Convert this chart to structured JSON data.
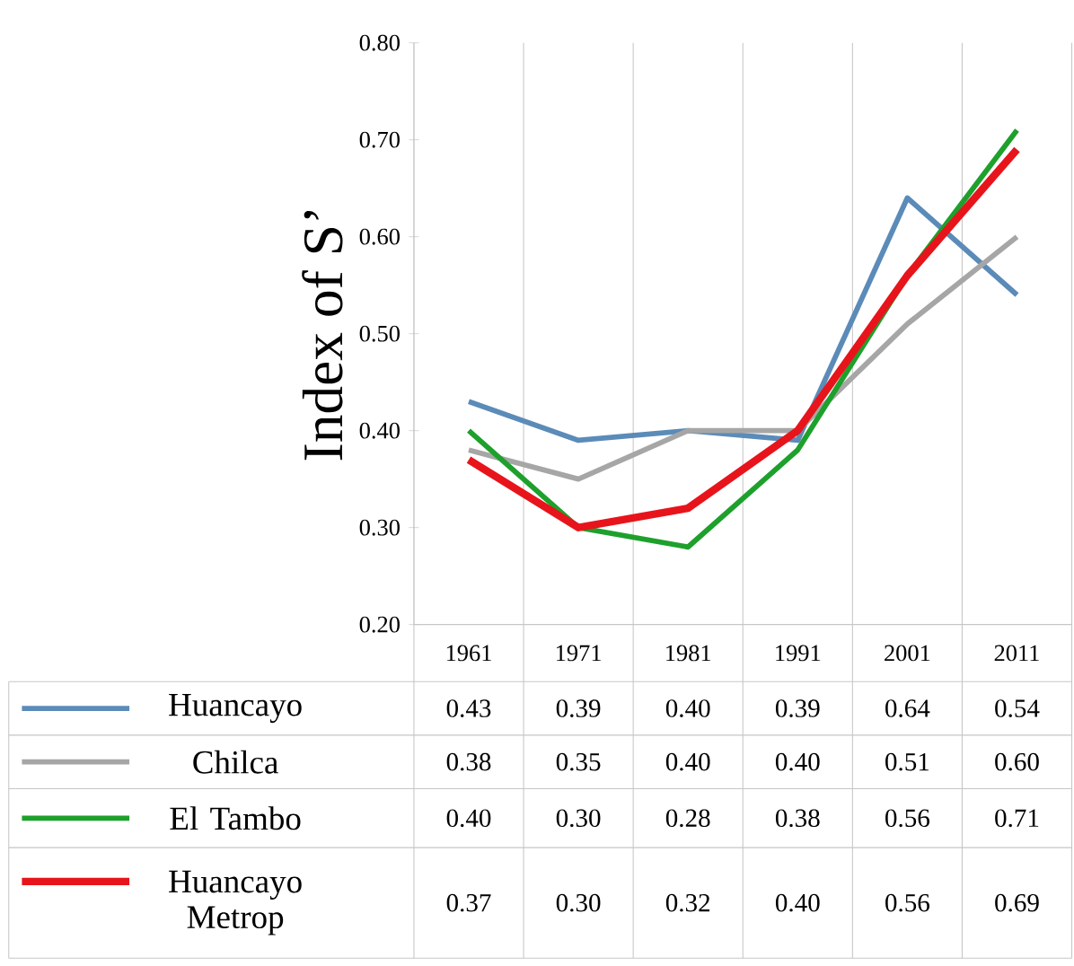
{
  "chart_data": {
    "type": "line",
    "ylabel": "Index of S’",
    "categories": [
      "1961",
      "1971",
      "1981",
      "1991",
      "2001",
      "2011"
    ],
    "ylim": [
      0.2,
      0.8
    ],
    "yticks": [
      {
        "value": 0.2,
        "label": "0.20"
      },
      {
        "value": 0.3,
        "label": "0.30"
      },
      {
        "value": 0.4,
        "label": "0.40"
      },
      {
        "value": 0.5,
        "label": "0.50"
      },
      {
        "value": 0.6,
        "label": "0.60"
      },
      {
        "value": 0.7,
        "label": "0.70"
      },
      {
        "value": 0.8,
        "label": "0.80"
      }
    ],
    "series": [
      {
        "name": "Huancayo",
        "color": "#5b8bb8",
        "values": [
          0.43,
          0.39,
          0.4,
          0.39,
          0.64,
          0.54
        ],
        "value_labels": [
          "0.43",
          "0.39",
          "0.40",
          "0.39",
          "0.64",
          "0.54"
        ]
      },
      {
        "name": "Chilca",
        "color": "#a6a6a6",
        "values": [
          0.38,
          0.35,
          0.4,
          0.4,
          0.51,
          0.6
        ],
        "value_labels": [
          "0.38",
          "0.35",
          "0.40",
          "0.40",
          "0.51",
          "0.60"
        ]
      },
      {
        "name": "El Tambo",
        "color": "#1ea02c",
        "values": [
          0.4,
          0.3,
          0.28,
          0.38,
          0.56,
          0.71
        ],
        "value_labels": [
          "0.40",
          "0.30",
          "0.28",
          "0.38",
          "0.56",
          "0.71"
        ]
      },
      {
        "name": "Huancayo Metrop",
        "color": "#e8141b",
        "values": [
          0.37,
          0.3,
          0.32,
          0.4,
          0.56,
          0.69
        ],
        "value_labels": [
          "0.37",
          "0.30",
          "0.32",
          "0.40",
          "0.56",
          "0.69"
        ]
      }
    ],
    "legend": "bottom",
    "marker": "none",
    "line_style": "solid",
    "grid": false
  }
}
